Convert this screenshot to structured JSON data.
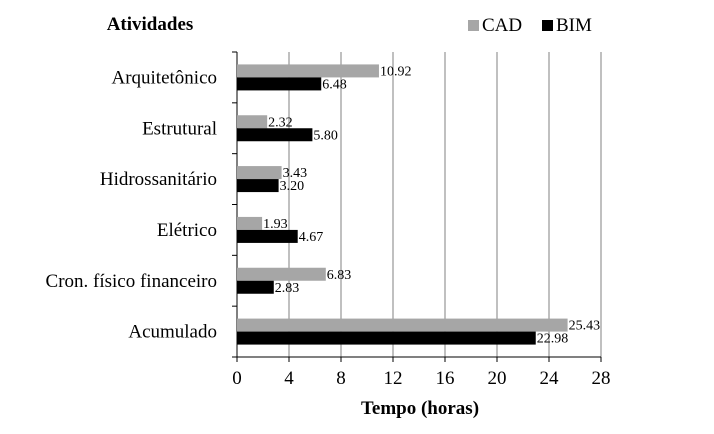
{
  "chart_data": {
    "type": "bar",
    "orientation": "horizontal",
    "title": "Atividades",
    "xlabel": "Tempo (horas)",
    "ylabel": "",
    "xlim": [
      0,
      28
    ],
    "xticks": [
      "0",
      "4",
      "8",
      "12",
      "16",
      "20",
      "24",
      "28"
    ],
    "grid": "vertical",
    "legend_position": "top-right",
    "categories": [
      "Arquitetônico",
      "Estrutural",
      "Hidrossanitário",
      "Elétrico",
      "Cron. físico financeiro",
      "Acumulado"
    ],
    "series": [
      {
        "name": "CAD",
        "color": "#a6a6a6",
        "values": [
          10.92,
          2.32,
          3.43,
          1.93,
          6.83,
          25.43
        ],
        "labels": [
          "10.92",
          "2.32",
          "3.43",
          "1.93",
          "6.83",
          "25.43"
        ]
      },
      {
        "name": "BIM",
        "color": "#000000",
        "values": [
          6.48,
          5.8,
          3.2,
          4.67,
          2.83,
          22.98
        ],
        "labels": [
          "6.48",
          "5.80",
          "3.20",
          "4.67",
          "2.83",
          "22.98"
        ]
      }
    ]
  }
}
